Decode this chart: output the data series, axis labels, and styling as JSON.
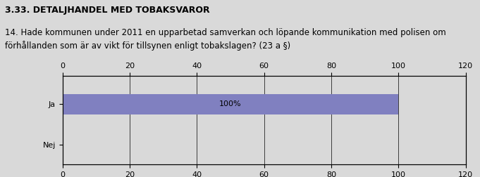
{
  "title_top": "3.33. DETALJHANDEL MED TOBAKSVAROR",
  "question": "14. Hade kommunen under 2011 en upparbetad samverkan och löpande kommunikation med polisen om\nförhållanden som är av vikt för tillsynen enligt tobakslagen? (23 a §)",
  "categories": [
    "Ja",
    "Nej"
  ],
  "values": [
    100,
    0
  ],
  "bar_color": "#8080c0",
  "bar_label": "100%",
  "xlim": [
    0,
    120
  ],
  "xticks": [
    0,
    20,
    40,
    60,
    80,
    100,
    120
  ],
  "background_color": "#d9d9d9",
  "plot_bg_color": "#d9d9d9",
  "bar_height": 0.5,
  "title_fontsize": 9,
  "question_fontsize": 8.5,
  "tick_fontsize": 8,
  "label_fontsize": 8
}
